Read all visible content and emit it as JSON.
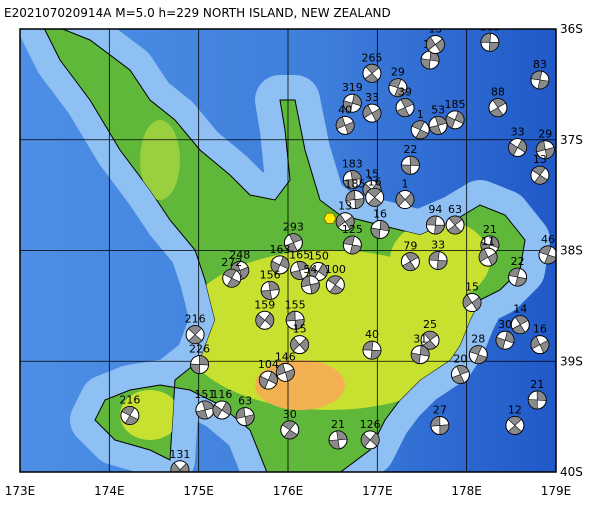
{
  "title": "E202107020914A M=5.0 h=229 NORTH ISLAND, NEW ZEALAND",
  "xlim": [
    173,
    179
  ],
  "ylim": [
    36,
    40
  ],
  "xticks": [
    {
      "value": 173,
      "label": "173E"
    },
    {
      "value": 174,
      "label": "174E"
    },
    {
      "value": 175,
      "label": "175E"
    },
    {
      "value": 176,
      "label": "176E"
    },
    {
      "value": 177,
      "label": "177E"
    },
    {
      "value": 178,
      "label": "178E"
    },
    {
      "value": 179,
      "label": "179E"
    }
  ],
  "yticks": [
    {
      "value": 36,
      "label": "36S"
    },
    {
      "value": 37,
      "label": "37S"
    },
    {
      "value": 38,
      "label": "38S"
    },
    {
      "value": 39,
      "label": "39S"
    },
    {
      "value": 40,
      "label": "40S"
    }
  ],
  "epicenter": {
    "lon": 176.47,
    "lat": 37.71
  },
  "events": [
    {
      "lon": 178.26,
      "lat": 36.12,
      "label": "185"
    },
    {
      "lon": 176.94,
      "lat": 36.4,
      "label": "265"
    },
    {
      "lon": 177.59,
      "lat": 36.28,
      "label": "15"
    },
    {
      "lon": 177.65,
      "lat": 36.14,
      "label": "13"
    },
    {
      "lon": 178.82,
      "lat": 36.46,
      "label": "83"
    },
    {
      "lon": 178.35,
      "lat": 36.71,
      "label": "88"
    },
    {
      "lon": 176.72,
      "lat": 36.67,
      "label": "319"
    },
    {
      "lon": 176.94,
      "lat": 36.76,
      "label": "33"
    },
    {
      "lon": 177.23,
      "lat": 36.53,
      "label": "29"
    },
    {
      "lon": 177.31,
      "lat": 36.71,
      "label": "39"
    },
    {
      "lon": 177.87,
      "lat": 36.82,
      "label": "185"
    },
    {
      "lon": 176.64,
      "lat": 36.87,
      "label": "40"
    },
    {
      "lon": 177.48,
      "lat": 36.91,
      "label": "1"
    },
    {
      "lon": 177.68,
      "lat": 36.87,
      "label": "53"
    },
    {
      "lon": 178.57,
      "lat": 37.07,
      "label": "33"
    },
    {
      "lon": 178.88,
      "lat": 37.09,
      "label": "29"
    },
    {
      "lon": 178.82,
      "lat": 37.32,
      "label": "13"
    },
    {
      "lon": 176.72,
      "lat": 37.36,
      "label": "183"
    },
    {
      "lon": 176.94,
      "lat": 37.45,
      "label": "15"
    },
    {
      "lon": 176.75,
      "lat": 37.54,
      "label": "185"
    },
    {
      "lon": 176.97,
      "lat": 37.52,
      "label": "16"
    },
    {
      "lon": 177.37,
      "lat": 37.23,
      "label": "22"
    },
    {
      "lon": 177.31,
      "lat": 37.54,
      "label": "1"
    },
    {
      "lon": 177.65,
      "lat": 37.77,
      "label": "94"
    },
    {
      "lon": 177.87,
      "lat": 37.77,
      "label": "63"
    },
    {
      "lon": 177.03,
      "lat": 37.81,
      "label": "16"
    },
    {
      "lon": 176.64,
      "lat": 37.74,
      "label": "13"
    },
    {
      "lon": 176.72,
      "lat": 37.95,
      "label": "125"
    },
    {
      "lon": 177.37,
      "lat": 38.1,
      "label": "79"
    },
    {
      "lon": 178.26,
      "lat": 37.95,
      "label": "21"
    },
    {
      "lon": 178.24,
      "lat": 38.06,
      "label": "11"
    },
    {
      "lon": 178.91,
      "lat": 38.04,
      "label": "46"
    },
    {
      "lon": 176.06,
      "lat": 37.93,
      "label": "293"
    },
    {
      "lon": 175.91,
      "lat": 38.13,
      "label": "163"
    },
    {
      "lon": 175.46,
      "lat": 38.18,
      "label": "248"
    },
    {
      "lon": 175.37,
      "lat": 38.25,
      "label": "272"
    },
    {
      "lon": 176.13,
      "lat": 38.18,
      "label": "165"
    },
    {
      "lon": 176.34,
      "lat": 38.19,
      "label": "150"
    },
    {
      "lon": 176.25,
      "lat": 38.31,
      "label": "54"
    },
    {
      "lon": 176.53,
      "lat": 38.31,
      "label": "100"
    },
    {
      "lon": 175.8,
      "lat": 38.36,
      "label": "156"
    },
    {
      "lon": 175.74,
      "lat": 38.63,
      "label": "159"
    },
    {
      "lon": 176.08,
      "lat": 38.63,
      "label": "155"
    },
    {
      "lon": 174.96,
      "lat": 38.76,
      "label": "216"
    },
    {
      "lon": 175.01,
      "lat": 39.03,
      "label": "226"
    },
    {
      "lon": 176.13,
      "lat": 38.85,
      "label": "15"
    },
    {
      "lon": 176.94,
      "lat": 38.9,
      "label": "40"
    },
    {
      "lon": 177.59,
      "lat": 38.81,
      "label": "25"
    },
    {
      "lon": 177.48,
      "lat": 38.94,
      "label": "31"
    },
    {
      "lon": 178.06,
      "lat": 38.47,
      "label": "15"
    },
    {
      "lon": 178.57,
      "lat": 38.24,
      "label": "22"
    },
    {
      "lon": 178.6,
      "lat": 38.67,
      "label": "14"
    },
    {
      "lon": 178.43,
      "lat": 38.81,
      "label": "30"
    },
    {
      "lon": 178.82,
      "lat": 38.85,
      "label": "16"
    },
    {
      "lon": 178.13,
      "lat": 38.94,
      "label": "28"
    },
    {
      "lon": 177.93,
      "lat": 39.12,
      "label": "20"
    },
    {
      "lon": 175.78,
      "lat": 39.17,
      "label": "104"
    },
    {
      "lon": 175.97,
      "lat": 39.1,
      "label": "146"
    },
    {
      "lon": 174.23,
      "lat": 39.49,
      "label": "216"
    },
    {
      "lon": 175.07,
      "lat": 39.44,
      "label": "151"
    },
    {
      "lon": 175.26,
      "lat": 39.44,
      "label": "116"
    },
    {
      "lon": 175.52,
      "lat": 39.5,
      "label": "63"
    },
    {
      "lon": 176.02,
      "lat": 39.62,
      "label": "30"
    },
    {
      "lon": 176.56,
      "lat": 39.71,
      "label": "21"
    },
    {
      "lon": 176.92,
      "lat": 39.71,
      "label": "126"
    },
    {
      "lon": 177.7,
      "lat": 39.58,
      "label": "27"
    },
    {
      "lon": 178.54,
      "lat": 39.58,
      "label": "12"
    },
    {
      "lon": 178.79,
      "lat": 39.35,
      "label": "21"
    },
    {
      "lon": 174.79,
      "lat": 39.98,
      "label": "131"
    },
    {
      "lon": 177.68,
      "lat": 38.09,
      "label": "33"
    }
  ]
}
